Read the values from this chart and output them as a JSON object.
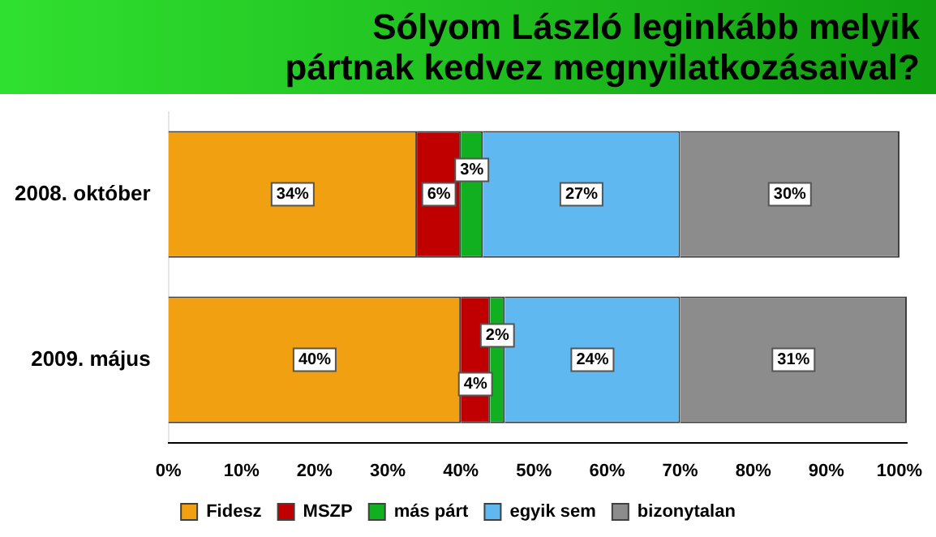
{
  "chart_data": {
    "type": "bar",
    "orientation": "horizontal",
    "stacked": true,
    "title": "Sólyom László leginkább melyik pártnak kedvez megnyilatkozásaival?",
    "categories": [
      "2008. október",
      "2009. május"
    ],
    "series": [
      {
        "name": "Fidesz",
        "color": "#f0a010",
        "values": [
          34,
          40
        ],
        "value_labels": [
          "34%",
          "40%"
        ]
      },
      {
        "name": "MSZP",
        "color": "#c00000",
        "values": [
          6,
          4
        ],
        "value_labels": [
          "6%",
          "4%"
        ]
      },
      {
        "name": "más párt",
        "color": "#10b020",
        "values": [
          3,
          2
        ],
        "value_labels": [
          "3%",
          "2%"
        ]
      },
      {
        "name": "egyik sem",
        "color": "#60b8f0",
        "values": [
          27,
          24
        ],
        "value_labels": [
          "27%",
          "24%"
        ]
      },
      {
        "name": "bizonytalan",
        "color": "#8c8c8c",
        "values": [
          30,
          31
        ],
        "value_labels": [
          "30%",
          "31%"
        ]
      }
    ],
    "xlim": [
      0,
      101
    ],
    "xticks": [
      {
        "value": 0,
        "label": "0%"
      },
      {
        "value": 10,
        "label": "10%"
      },
      {
        "value": 20,
        "label": "20%"
      },
      {
        "value": 30,
        "label": "30%"
      },
      {
        "value": 40,
        "label": "40%"
      },
      {
        "value": 50,
        "label": "50%"
      },
      {
        "value": 60,
        "label": "60%"
      },
      {
        "value": 70,
        "label": "70%"
      },
      {
        "value": 80,
        "label": "80%"
      },
      {
        "value": 90,
        "label": "90%"
      },
      {
        "value": 100,
        "label": "100%"
      }
    ],
    "grid": false,
    "legend": "bottom"
  }
}
